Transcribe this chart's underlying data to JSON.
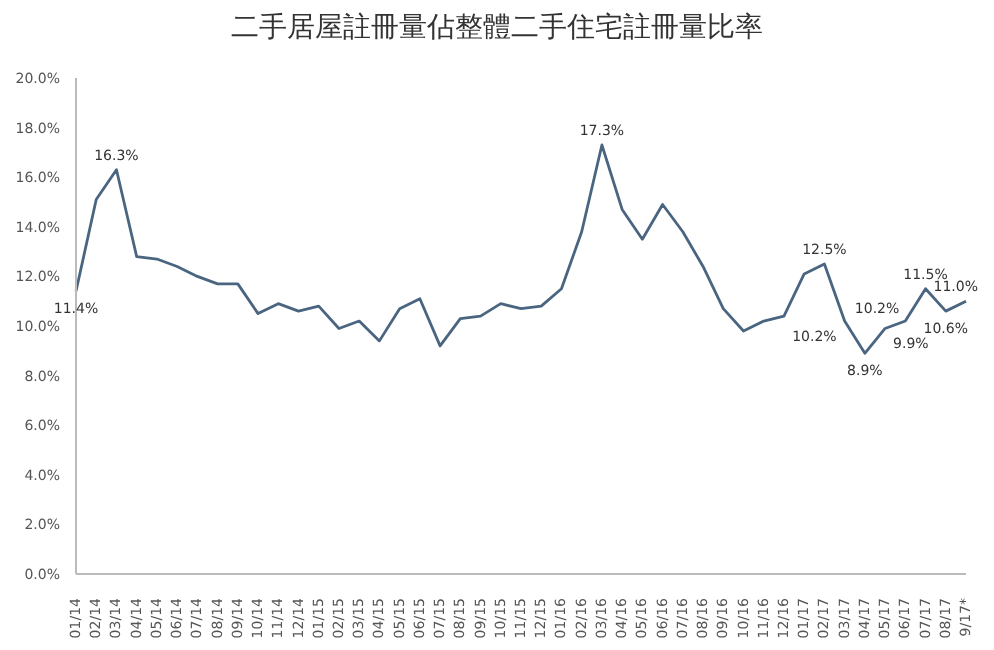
{
  "chart_data": {
    "type": "line",
    "title": "二手居屋註冊量佔整體二手住宅註冊量比率",
    "categories": [
      "01/14",
      "02/14",
      "03/14",
      "04/14",
      "05/14",
      "06/14",
      "07/14",
      "08/14",
      "09/14",
      "10/14",
      "11/14",
      "12/14",
      "01/15",
      "02/15",
      "03/15",
      "04/15",
      "05/15",
      "06/15",
      "07/15",
      "08/15",
      "09/15",
      "10/15",
      "11/15",
      "12/15",
      "01/16",
      "02/16",
      "03/16",
      "04/16",
      "05/16",
      "06/16",
      "07/16",
      "08/16",
      "09/16",
      "10/16",
      "11/16",
      "12/16",
      "01/17",
      "02/17",
      "03/17",
      "04/17",
      "05/17",
      "06/17",
      "07/17",
      "08/17",
      "9/17*"
    ],
    "series": [
      {
        "color": "#4a6580",
        "values": [
          11.4,
          15.1,
          16.3,
          12.8,
          12.7,
          12.4,
          12.0,
          11.7,
          11.7,
          10.5,
          10.9,
          10.6,
          10.8,
          9.9,
          10.2,
          9.4,
          10.7,
          11.1,
          9.2,
          10.3,
          10.4,
          10.9,
          10.7,
          10.8,
          11.5,
          13.8,
          17.3,
          14.7,
          13.5,
          14.9,
          13.8,
          12.4,
          10.7,
          9.8,
          10.2,
          10.4,
          12.1,
          12.5,
          10.2,
          8.9,
          9.9,
          10.2,
          11.5,
          10.6,
          11.0
        ],
        "value_labels": [
          "11.4%",
          null,
          "16.3%",
          null,
          null,
          null,
          null,
          null,
          null,
          null,
          null,
          null,
          null,
          null,
          null,
          null,
          null,
          null,
          null,
          null,
          null,
          null,
          null,
          null,
          null,
          null,
          "17.3%",
          null,
          null,
          null,
          null,
          null,
          null,
          null,
          null,
          null,
          null,
          "12.5%",
          "10.2%",
          "8.9%",
          "9.9%",
          "10.2%",
          "11.5%",
          "10.6%",
          "11.0%"
        ]
      }
    ],
    "ylim": [
      0,
      20
    ],
    "yticks": [
      {
        "value": 0,
        "label": "0.0%"
      },
      {
        "value": 2,
        "label": "2.0%"
      },
      {
        "value": 4,
        "label": "4.0%"
      },
      {
        "value": 6,
        "label": "6.0%"
      },
      {
        "value": 8,
        "label": "8.0%"
      },
      {
        "value": 10,
        "label": "10.0%"
      },
      {
        "value": 12,
        "label": "12.0%"
      },
      {
        "value": 14,
        "label": "14.0%"
      },
      {
        "value": 16,
        "label": "16.0%"
      },
      {
        "value": 18,
        "label": "18.0%"
      },
      {
        "value": 20,
        "label": "20.0%"
      }
    ],
    "grid": false,
    "legend": false,
    "marker": "none",
    "line_style": "solid"
  }
}
